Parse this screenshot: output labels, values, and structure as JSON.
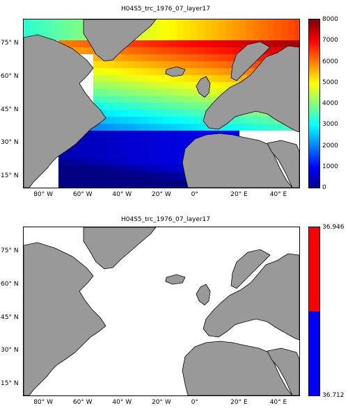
{
  "panels": [
    {
      "title": "H04S5_trc_1976_07_layer17",
      "colorbar": {
        "type": "continuous",
        "colormap": "jet",
        "range": [
          0,
          8000
        ],
        "ticks": [
          "8000",
          "7000",
          "6000",
          "5000",
          "4000",
          "3000",
          "2000",
          "1000",
          "0"
        ]
      }
    },
    {
      "title": "H04S5_trc_1976_07_layer17",
      "colorbar": {
        "type": "binary",
        "colors": [
          "#ff0000",
          "#0000ff"
        ],
        "ticks": [
          "36.946",
          "36.712"
        ]
      }
    }
  ],
  "axes": {
    "lon_labels": [
      "80° W",
      "60° W",
      "40° W",
      "20° W",
      "0°",
      "20° E",
      "40° E"
    ],
    "lat_labels": [
      "75° N",
      "60° N",
      "45° N",
      "30° N",
      "15° N"
    ],
    "lon_range": [
      -90,
      50
    ],
    "lat_range": [
      10,
      86
    ]
  },
  "colors": {
    "land": "#999999",
    "ocean_masked": "#ffffff",
    "border": "#000000"
  }
}
